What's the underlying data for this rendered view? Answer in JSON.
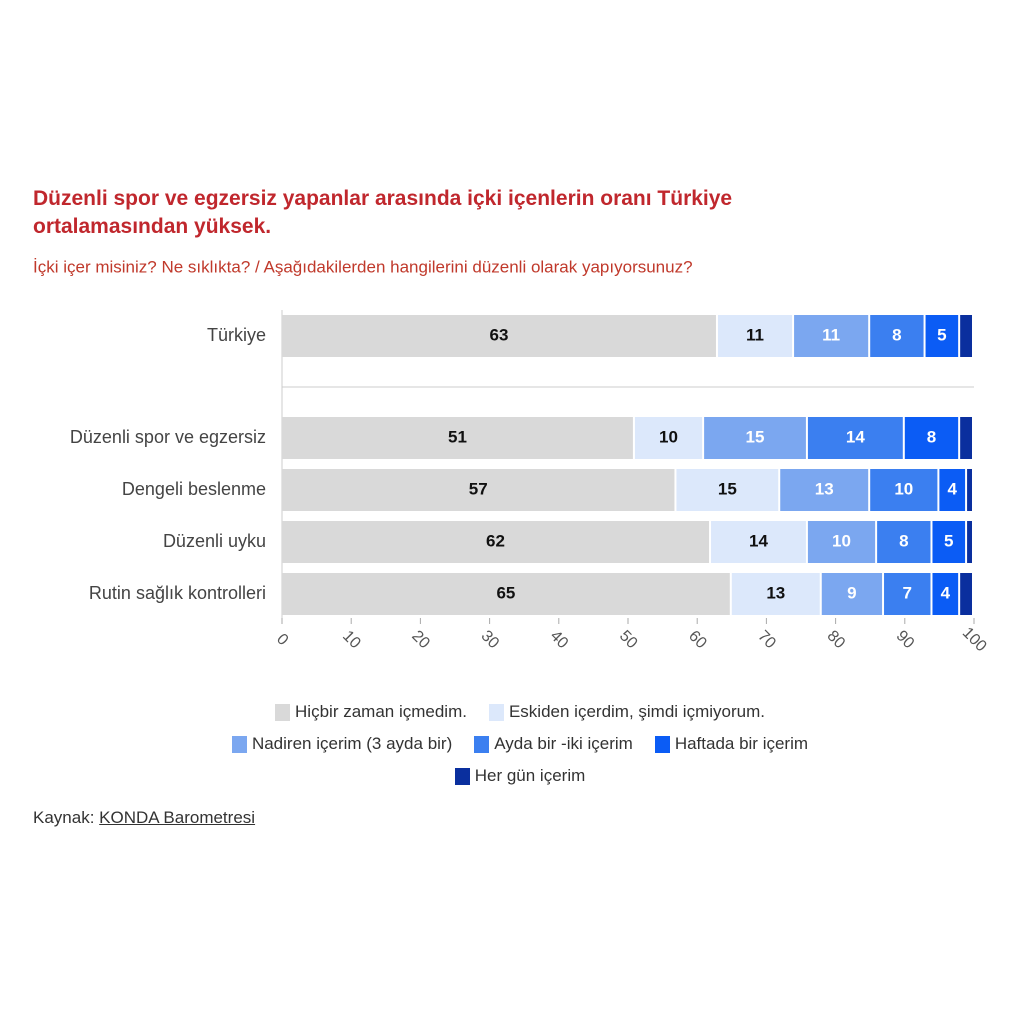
{
  "chart_data": {
    "type": "stacked-bar-horizontal",
    "title": "Düzenli spor ve egzersiz yapanlar arasında içki içenlerin oranı Türkiye ortalamasından yüksek.",
    "subtitle": "İçki içer misiniz? Ne sıklıkta? / Aşağıdakilerden hangilerini düzenli olarak yapıyorsunuz?",
    "categories": [
      "Türkiye",
      "Düzenli spor ve egzersiz",
      "Dengeli beslenme",
      "Düzenli uyku",
      "Rutin sağlık kontrolleri"
    ],
    "series": [
      {
        "name": "Hiçbir zaman içmedim.",
        "color": "#d9d9d9",
        "values": [
          63,
          51,
          57,
          62,
          65
        ]
      },
      {
        "name": "Eskiden içerdim, şimdi içmiyorum.",
        "color": "#dce8fb",
        "values": [
          11,
          10,
          15,
          14,
          13
        ]
      },
      {
        "name": "Nadiren içerim (3 ayda bir)",
        "color": "#7ba7f0",
        "values": [
          11,
          15,
          13,
          10,
          9
        ]
      },
      {
        "name": "Ayda bir -iki içerim",
        "color": "#3b7ff0",
        "values": [
          8,
          14,
          10,
          8,
          7
        ]
      },
      {
        "name": "Haftada bir içerim",
        "color": "#0b5cf5",
        "values": [
          5,
          8,
          4,
          5,
          4
        ]
      },
      {
        "name": "Her gün içerim",
        "color": "#0a2f9e",
        "values": [
          2,
          2,
          1,
          1,
          2
        ]
      }
    ],
    "xlim": [
      0,
      100
    ],
    "xticks": [
      0,
      10,
      20,
      30,
      40,
      50,
      60,
      70,
      80,
      90,
      100
    ],
    "source": {
      "label": "Kaynak:",
      "link": "KONDA Barometresi"
    }
  }
}
